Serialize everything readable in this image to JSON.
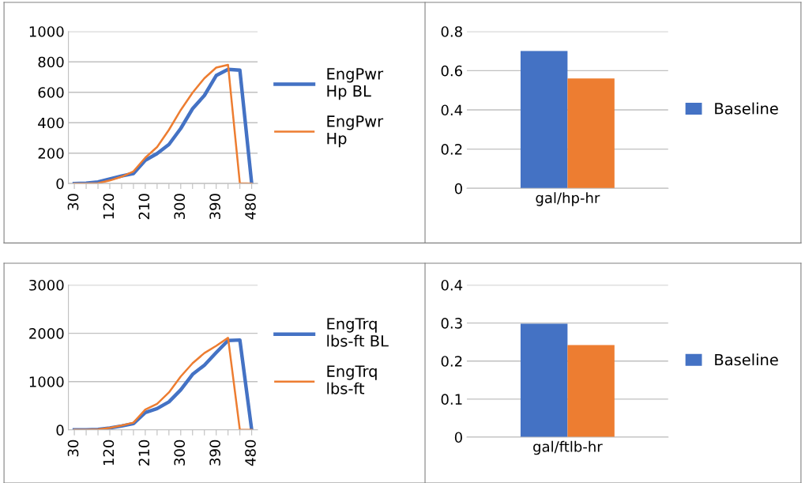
{
  "chart_data": [
    {
      "type": "line",
      "categories": [
        "30",
        null,
        null,
        "120",
        null,
        null,
        "210",
        null,
        null,
        "300",
        null,
        null,
        "390",
        null,
        null,
        "480"
      ],
      "ylim": [
        0,
        1000
      ],
      "yticks": [
        0,
        200,
        400,
        600,
        800,
        1000
      ],
      "grid": "y",
      "legend": "right",
      "marker": "none",
      "series": [
        {
          "name": "EngPwr Hp BL",
          "color": "#4472c4",
          "values": [
            0,
            2,
            10,
            30,
            50,
            66,
            153,
            197,
            257,
            362,
            492,
            579,
            710,
            750,
            745,
            0
          ]
        },
        {
          "name": "EngPwr Hp",
          "color": "#ed7d31",
          "values": [
            0,
            0,
            2,
            20,
            45,
            80,
            170,
            240,
            353,
            483,
            597,
            692,
            762,
            780,
            2,
            0
          ]
        }
      ]
    },
    {
      "type": "bar",
      "categories": [
        "gal/hp-hr"
      ],
      "ylim": [
        0,
        0.8
      ],
      "yticks": [
        {
          "value": 0,
          "label": "0"
        },
        0.2,
        0.4,
        0.6,
        0.8
      ],
      "grid": "y",
      "legend": "right",
      "series": [
        {
          "name": "Baseline",
          "color": "#4472c4",
          "values": [
            0.7
          ]
        },
        {
          "color": "#ed7d31",
          "values": [
            0.56
          ]
        }
      ]
    },
    {
      "type": "line",
      "categories": [
        "30",
        null,
        null,
        "120",
        null,
        null,
        "210",
        null,
        null,
        "300",
        null,
        null,
        "390",
        null,
        null,
        "480"
      ],
      "ylim": [
        0,
        3000
      ],
      "yticks": [
        0,
        1000,
        2000,
        3000
      ],
      "grid": "y",
      "legend": "right",
      "marker": "none",
      "series": [
        {
          "name": "EngTrq lbs-ft BL",
          "color": "#4472c4",
          "values": [
            0,
            0,
            10,
            40,
            80,
            130,
            360,
            440,
            580,
            830,
            1150,
            1340,
            1600,
            1850,
            1860,
            0
          ]
        },
        {
          "name": "EngTrq lbs-ft",
          "color": "#ed7d31",
          "values": [
            0,
            0,
            10,
            40,
            90,
            150,
            420,
            540,
            775,
            1105,
            1380,
            1590,
            1740,
            1905,
            0,
            0
          ]
        }
      ]
    },
    {
      "type": "bar",
      "categories": [
        "gal/ftlb-hr"
      ],
      "ylim": [
        0,
        0.4
      ],
      "yticks": [
        {
          "value": 0,
          "label": "0"
        },
        0.1,
        0.2,
        0.3,
        0.4
      ],
      "grid": "y",
      "legend": "right",
      "series": [
        {
          "name": "Baseline",
          "color": "#4472c4",
          "values": [
            0.298
          ]
        },
        {
          "color": "#ed7d31",
          "values": [
            0.242
          ]
        }
      ]
    }
  ]
}
